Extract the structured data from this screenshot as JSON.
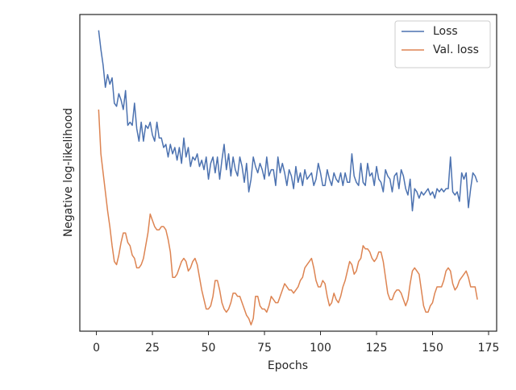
{
  "chart_data": {
    "type": "line",
    "xlabel": "Epochs",
    "ylabel": "Negative log-likelihood",
    "x": [
      1,
      2,
      3,
      4,
      5,
      6,
      7,
      8,
      9,
      10,
      11,
      12,
      13,
      14,
      15,
      16,
      17,
      18,
      19,
      20,
      21,
      22,
      23,
      24,
      25,
      26,
      27,
      28,
      29,
      30,
      31,
      32,
      33,
      34,
      35,
      36,
      37,
      38,
      39,
      40,
      41,
      42,
      43,
      44,
      45,
      46,
      47,
      48,
      49,
      50,
      51,
      52,
      53,
      54,
      55,
      56,
      57,
      58,
      59,
      60,
      61,
      62,
      63,
      64,
      65,
      66,
      67,
      68,
      69,
      70,
      71,
      72,
      73,
      74,
      75,
      76,
      77,
      78,
      79,
      80,
      81,
      82,
      83,
      84,
      85,
      86,
      87,
      88,
      89,
      90,
      91,
      92,
      93,
      94,
      95,
      96,
      97,
      98,
      99,
      100,
      101,
      102,
      103,
      104,
      105,
      106,
      107,
      108,
      109,
      110,
      111,
      112,
      113,
      114,
      115,
      116,
      117,
      118,
      119,
      120,
      121,
      122,
      123,
      124,
      125,
      126,
      127,
      128,
      129,
      130,
      131,
      132,
      133,
      134,
      135,
      136,
      137,
      138,
      139,
      140,
      141,
      142,
      143,
      144,
      145,
      146,
      147,
      148,
      149,
      150,
      151,
      152,
      153,
      154,
      155,
      156,
      157,
      158,
      159,
      160,
      161,
      162,
      163,
      164,
      165,
      166,
      167,
      168,
      169,
      170
    ],
    "series": [
      {
        "name": "Loss",
        "color": "#4c72b0",
        "values": [
          95,
          89,
          84,
          77,
          81,
          78,
          80,
          72,
          71,
          75,
          73,
          70,
          76,
          65,
          66,
          65,
          72,
          64,
          60,
          66,
          60,
          65,
          64,
          66,
          62,
          60,
          66,
          61,
          61,
          58,
          59,
          55,
          59,
          56,
          58,
          54,
          58,
          53,
          61,
          55,
          58,
          52,
          55,
          54,
          56,
          52,
          54,
          51,
          55,
          48,
          53,
          55,
          50,
          55,
          48,
          54,
          59,
          51,
          56,
          49,
          55,
          51,
          49,
          55,
          52,
          47,
          53,
          44,
          48,
          55,
          52,
          50,
          53,
          51,
          48,
          55,
          49,
          51,
          51,
          46,
          55,
          50,
          53,
          50,
          46,
          51,
          49,
          45,
          52,
          47,
          50,
          46,
          51,
          48,
          49,
          50,
          46,
          48,
          53,
          50,
          46,
          46,
          51,
          48,
          46,
          50,
          48,
          47,
          50,
          46,
          50,
          47,
          47,
          56,
          49,
          47,
          46,
          53,
          47,
          46,
          53,
          49,
          50,
          46,
          52,
          48,
          47,
          44,
          51,
          49,
          48,
          44,
          49,
          50,
          45,
          51,
          49,
          45,
          43,
          48,
          38,
          45,
          44,
          42,
          44,
          43,
          44,
          45,
          43,
          44,
          42,
          45,
          44,
          45,
          44,
          45,
          45,
          55,
          44,
          43,
          44,
          41,
          50,
          48,
          50,
          39,
          45,
          50,
          49,
          47
        ]
      },
      {
        "name": "Val. loss",
        "color": "#dd8452",
        "values": [
          70,
          56,
          50,
          44,
          38,
          33,
          27,
          22,
          21,
          24,
          28,
          31,
          31,
          28,
          27,
          24,
          23,
          20,
          20,
          21,
          23,
          27,
          31,
          37,
          35,
          33,
          32,
          32,
          33,
          33,
          32,
          29,
          25,
          17,
          17,
          18,
          20,
          22,
          23,
          22,
          19,
          20,
          22,
          23,
          21,
          17,
          13,
          10,
          7,
          7,
          8,
          11,
          16,
          16,
          13,
          9,
          7,
          6,
          7,
          9,
          12,
          12,
          11,
          11,
          9,
          7,
          5,
          4,
          2,
          4,
          11,
          11,
          8,
          7,
          7,
          6,
          8,
          11,
          10,
          9,
          9,
          11,
          13,
          15,
          14,
          13,
          13,
          12,
          13,
          14,
          16,
          17,
          20,
          21,
          22,
          23,
          20,
          16,
          14,
          14,
          16,
          15,
          11,
          8,
          9,
          12,
          10,
          9,
          11,
          14,
          16,
          19,
          22,
          21,
          18,
          19,
          22,
          23,
          27,
          26,
          26,
          25,
          23,
          22,
          23,
          25,
          25,
          22,
          17,
          12,
          10,
          10,
          12,
          13,
          13,
          12,
          10,
          8,
          10,
          15,
          19,
          20,
          19,
          18,
          13,
          8,
          6,
          6,
          8,
          9,
          12,
          14,
          14,
          14,
          16,
          19,
          20,
          19,
          15,
          13,
          14,
          16,
          17,
          18,
          19,
          17,
          14,
          14,
          14,
          10
        ]
      }
    ],
    "xlim": [
      -7.4,
      178.6
    ],
    "ylim": [
      0,
      100
    ],
    "xticks": [
      0,
      25,
      50,
      75,
      100,
      125,
      150,
      175
    ],
    "legend": "upper right"
  }
}
